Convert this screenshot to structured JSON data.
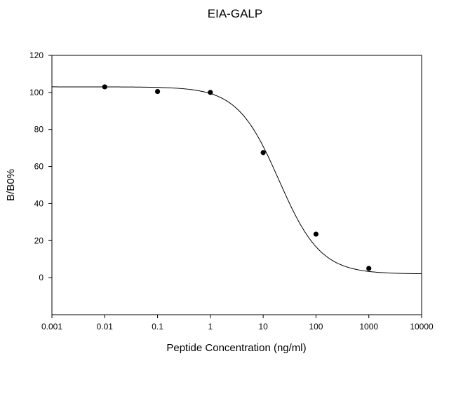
{
  "chart_data": {
    "type": "scatter",
    "title": "EIA-GALP",
    "xlabel": "Peptide Concentration (ng/ml)",
    "ylabel": "B/B0%",
    "x_scale": "log",
    "xlim": [
      0.001,
      10000
    ],
    "ylim": [
      -20,
      120
    ],
    "x_ticks": [
      0.001,
      0.01,
      0.1,
      1,
      10,
      100,
      1000,
      10000
    ],
    "x_tick_labels": [
      "0.001",
      "0.01",
      "0.1",
      "1",
      "10",
      "100",
      "1000",
      "10000"
    ],
    "y_ticks": [
      0,
      20,
      40,
      60,
      80,
      100,
      120
    ],
    "y_tick_labels": [
      "0",
      "20",
      "40",
      "60",
      "80",
      "100",
      "120"
    ],
    "grid": false,
    "series": [
      {
        "kind": "points",
        "x": [
          0.01,
          0.1,
          1,
          10,
          100,
          1000
        ],
        "y": [
          103,
          100.5,
          100,
          67.5,
          23.5,
          5
        ],
        "color": "#000000"
      },
      {
        "kind": "fitted-curve",
        "model": "4PL",
        "top": 103,
        "bottom": 2,
        "ec50": 20,
        "hill": 1.1,
        "x_range": [
          0.001,
          10000
        ],
        "color": "#000000"
      }
    ]
  }
}
